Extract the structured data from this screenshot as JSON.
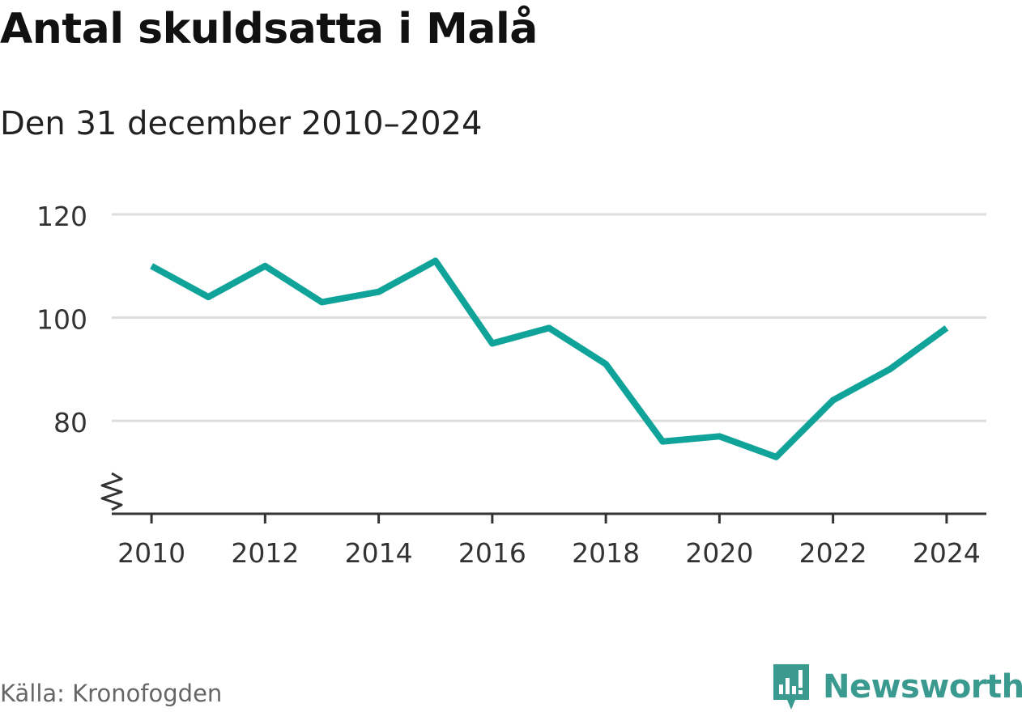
{
  "header": {
    "title": "Antal skuldsatta i Malå",
    "subtitle": "Den 31 december 2010–2024"
  },
  "footer": {
    "source": "Källa: Kronofogden",
    "brand": "Newsworthy",
    "brand_icon": "newsworthy-logo-icon"
  },
  "colors": {
    "line": "#0fa39a",
    "grid": "#dddddd",
    "axis": "#333333",
    "brand": "#3a9a8f"
  },
  "chart_data": {
    "type": "line",
    "title": "Antal skuldsatta i Malå",
    "subtitle": "Den 31 december 2010–2024",
    "x": [
      2010,
      2011,
      2012,
      2013,
      2014,
      2015,
      2016,
      2017,
      2018,
      2019,
      2020,
      2021,
      2022,
      2023,
      2024
    ],
    "series": [
      {
        "values": [
          110,
          104,
          110,
          103,
          105,
          111,
          95,
          98,
          91,
          76,
          77,
          73,
          84,
          90,
          98
        ]
      }
    ],
    "x_ticks": [
      2010,
      2012,
      2014,
      2016,
      2018,
      2020,
      2022,
      2024
    ],
    "y_ticks": [
      80,
      100,
      120
    ],
    "ylim": [
      62,
      120
    ],
    "xlim": [
      2009.3,
      2024.7
    ],
    "y_axis_break": true,
    "grid": "horizontal",
    "xlabel": "",
    "ylabel": ""
  }
}
